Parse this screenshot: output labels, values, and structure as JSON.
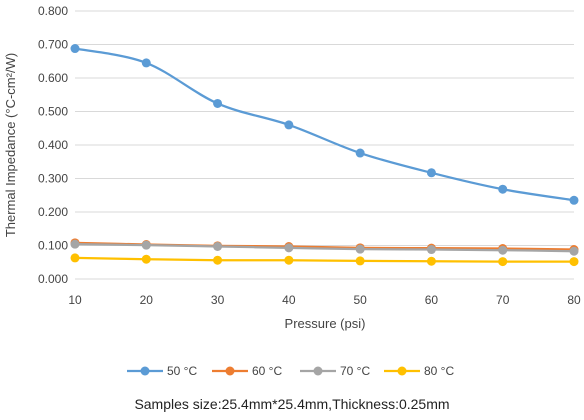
{
  "chart_data": {
    "type": "line",
    "xlabel": "Pressure (psi)",
    "ylabel": "Thermal Impedance (°C-cm²/W)",
    "x": [
      10,
      20,
      30,
      40,
      50,
      60,
      70,
      80
    ],
    "xlim": [
      10,
      80
    ],
    "ylim": [
      0,
      0.8
    ],
    "yticks": [
      "0.000",
      "0.100",
      "0.200",
      "0.300",
      "0.400",
      "0.500",
      "0.600",
      "0.700",
      "0.800"
    ],
    "grid": "horizontal",
    "legend_position": "bottom",
    "series": [
      {
        "name": "50 °C",
        "color": "#5b9bd5",
        "values": [
          0.688,
          0.645,
          0.524,
          0.46,
          0.376,
          0.317,
          0.268,
          0.235
        ]
      },
      {
        "name": "60 °C",
        "color": "#ed7d31",
        "values": [
          0.108,
          0.103,
          0.099,
          0.097,
          0.093,
          0.092,
          0.091,
          0.088
        ]
      },
      {
        "name": "70 °C",
        "color": "#a5a5a5",
        "values": [
          0.104,
          0.101,
          0.097,
          0.093,
          0.089,
          0.088,
          0.086,
          0.083
        ]
      },
      {
        "name": "80 °C",
        "color": "#ffc000",
        "values": [
          0.063,
          0.059,
          0.056,
          0.056,
          0.054,
          0.053,
          0.052,
          0.052
        ]
      }
    ]
  },
  "caption": "Samples size:25.4mm*25.4mm,Thickness:0.25mm"
}
